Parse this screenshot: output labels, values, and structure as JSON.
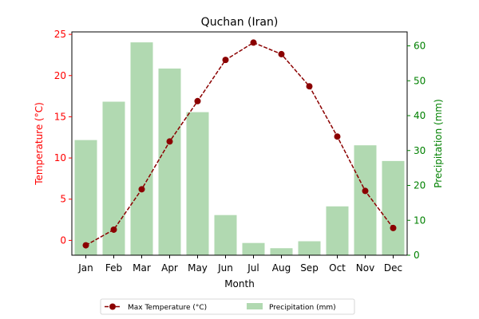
{
  "chart_data": {
    "type": "bar+line",
    "title": "Quchan (Iran)",
    "xlabel": "Month",
    "categories": [
      "Jan",
      "Feb",
      "Mar",
      "Apr",
      "May",
      "Jun",
      "Jul",
      "Aug",
      "Sep",
      "Oct",
      "Nov",
      "Dec"
    ],
    "y_left": {
      "label": "Temperature (°C)",
      "range": [
        -1.8,
        25.3
      ],
      "ticks": [
        0,
        5,
        10,
        15,
        20,
        25
      ],
      "color": "#ff0000"
    },
    "y_right": {
      "label": "Precipitation (mm)",
      "range": [
        0,
        64
      ],
      "ticks": [
        0,
        10,
        20,
        30,
        40,
        50,
        60
      ],
      "color": "#008000"
    },
    "series": [
      {
        "name": "Max Temperature (°C)",
        "type": "line",
        "axis": "left",
        "color": "#8b0000",
        "line_style": "dashed",
        "marker": "circle",
        "values": [
          -0.6,
          1.3,
          6.2,
          12.0,
          16.9,
          21.9,
          24.0,
          22.6,
          18.7,
          12.6,
          6.0,
          1.5
        ]
      },
      {
        "name": "Precipitation (mm)",
        "type": "bar",
        "axis": "right",
        "color": "#b1d9b1",
        "values": [
          33.0,
          44.0,
          61.0,
          53.5,
          41.0,
          11.5,
          3.5,
          2.0,
          4.0,
          14.0,
          31.5,
          27.0
        ]
      }
    ],
    "legend_position": "bottom-center",
    "grid": false
  }
}
